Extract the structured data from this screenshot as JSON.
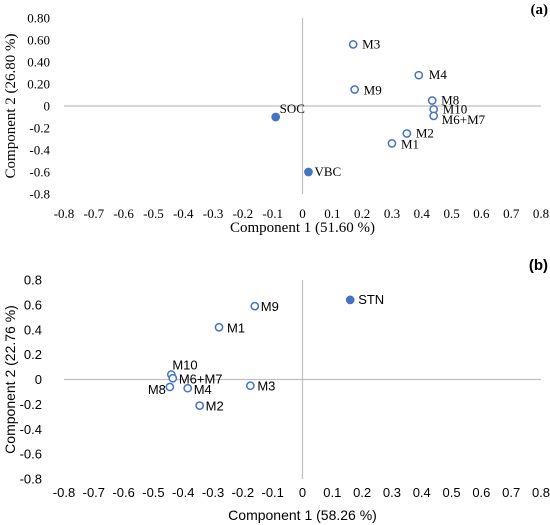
{
  "chart_data": [
    {
      "panel_label": "(a)",
      "type": "scatter",
      "xlabel": "Component 1 (51.60 %)",
      "ylabel": "Component 2 (26.80 %)",
      "xlim": [
        -0.8,
        0.8
      ],
      "ylim": [
        -0.8,
        0.8
      ],
      "x_ticks": [
        -0.8,
        -0.7,
        -0.6,
        -0.5,
        -0.4,
        -0.3,
        -0.2,
        -0.1,
        0,
        0.1,
        0.2,
        0.3,
        0.4,
        0.5,
        0.6,
        0.7,
        0.8
      ],
      "y_ticks": [
        -0.8,
        -0.6,
        -0.4,
        -0.2,
        0,
        0.2,
        0.4,
        0.6,
        0.8
      ],
      "x_tick_labels": [
        "-0.8",
        "-0.7",
        "-0.6",
        "-0.5",
        "-0.4",
        "-0.3",
        "-0.2",
        "-0.1",
        "0",
        "0.1",
        "0.2",
        "0.3",
        "0.4",
        "0.5",
        "0.6",
        "0.7",
        "0.8"
      ],
      "y_tick_labels": [
        "-0.8",
        "-0.6",
        "-0.4",
        "-0.2",
        "0",
        "0.20",
        "0.40",
        "0.60",
        "0.80"
      ],
      "font": "serif",
      "points": [
        {
          "label": "M3",
          "x": 0.17,
          "y": 0.56,
          "filled": false
        },
        {
          "label": "M4",
          "x": 0.39,
          "y": 0.28,
          "filled": false
        },
        {
          "label": "M9",
          "x": 0.175,
          "y": 0.15,
          "filled": false
        },
        {
          "label": "M8",
          "x": 0.435,
          "y": 0.05,
          "filled": false
        },
        {
          "label": "M10",
          "x": 0.44,
          "y": -0.03,
          "filled": false
        },
        {
          "label": "M6+M7",
          "x": 0.44,
          "y": -0.09,
          "filled": false
        },
        {
          "label": "M2",
          "x": 0.35,
          "y": -0.25,
          "filled": false
        },
        {
          "label": "M1",
          "x": 0.3,
          "y": -0.34,
          "filled": false
        },
        {
          "label": "SOC",
          "x": -0.09,
          "y": -0.1,
          "filled": true
        },
        {
          "label": "VBC",
          "x": 0.02,
          "y": -0.6,
          "filled": true
        }
      ]
    },
    {
      "panel_label": "(b)",
      "type": "scatter",
      "xlabel": "Component 1 (58.26 %)",
      "ylabel": "Component 2 (22.76 %)",
      "xlim": [
        -0.8,
        0.8
      ],
      "ylim": [
        -0.8,
        0.8
      ],
      "x_ticks": [
        -0.8,
        -0.7,
        -0.6,
        -0.5,
        -0.4,
        -0.3,
        -0.2,
        -0.1,
        0,
        0.1,
        0.2,
        0.3,
        0.4,
        0.5,
        0.6,
        0.7,
        0.8
      ],
      "y_ticks": [
        -0.8,
        -0.6,
        -0.4,
        -0.2,
        0,
        0.2,
        0.4,
        0.6,
        0.8
      ],
      "x_tick_labels": [
        "-0.8",
        "-0.7",
        "-0.6",
        "-0.5",
        "-0.4",
        "-0.3",
        "-0.2",
        "-0.1",
        "0",
        "0.1",
        "0.2",
        "0.3",
        "0.4",
        "0.5",
        "0.6",
        "0.7",
        "0.8"
      ],
      "y_tick_labels": [
        "-0.8",
        "-0.6",
        "-0.4",
        "-0.2",
        "0",
        "0.2",
        "0.4",
        "0.6",
        "0.8"
      ],
      "font": "sans",
      "points": [
        {
          "label": "STN",
          "x": 0.16,
          "y": 0.64,
          "filled": true
        },
        {
          "label": "M9",
          "x": -0.16,
          "y": 0.59,
          "filled": false
        },
        {
          "label": "M1",
          "x": -0.28,
          "y": 0.42,
          "filled": false
        },
        {
          "label": "M10",
          "x": -0.44,
          "y": 0.04,
          "filled": false
        },
        {
          "label": "M6+M7",
          "x": -0.435,
          "y": 0.01,
          "filled": false
        },
        {
          "label": "M8",
          "x": -0.445,
          "y": -0.06,
          "filled": false
        },
        {
          "label": "M4",
          "x": -0.385,
          "y": -0.07,
          "filled": false
        },
        {
          "label": "M3",
          "x": -0.175,
          "y": -0.05,
          "filled": false
        },
        {
          "label": "M2",
          "x": -0.345,
          "y": -0.21,
          "filled": false
        }
      ]
    }
  ],
  "colors": {
    "marker": "#4472C4",
    "marker_fill_open": "#ffffff",
    "axis_line": "#bfbfbf",
    "text": "#000000"
  }
}
